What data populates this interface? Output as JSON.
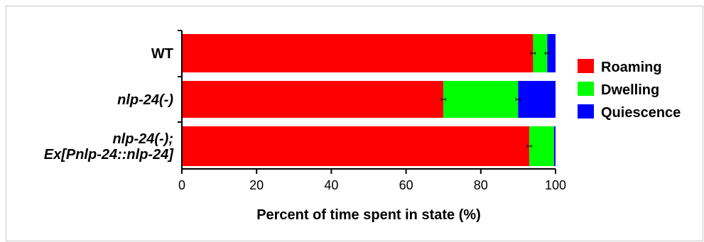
{
  "chart_data": {
    "type": "bar",
    "orientation": "horizontal",
    "stacked": true,
    "categories": [
      {
        "lines": [
          "WT"
        ],
        "italic": false
      },
      {
        "lines": [
          "nlp-24(-)"
        ],
        "italic": true
      },
      {
        "lines": [
          "nlp-24(-);",
          "Ex[Pnlp-24::nlp-24]"
        ],
        "italic": true
      }
    ],
    "series": [
      {
        "name": "Roaming",
        "color": "#ff0000",
        "values": [
          94,
          70,
          93
        ]
      },
      {
        "name": "Dwelling",
        "color": "#00ff00",
        "values": [
          3.8,
          20,
          6.6
        ]
      },
      {
        "name": "Quiescence",
        "color": "#0000ff",
        "values": [
          2.2,
          10,
          0.4
        ]
      }
    ],
    "error_bars": [
      true,
      true,
      false
    ],
    "xlabel": "Percent of time spent in state (%)",
    "xlim": [
      0,
      100
    ],
    "xticks": [
      0,
      20,
      40,
      60,
      80,
      100
    ],
    "grid": false,
    "legend_position": "right"
  }
}
